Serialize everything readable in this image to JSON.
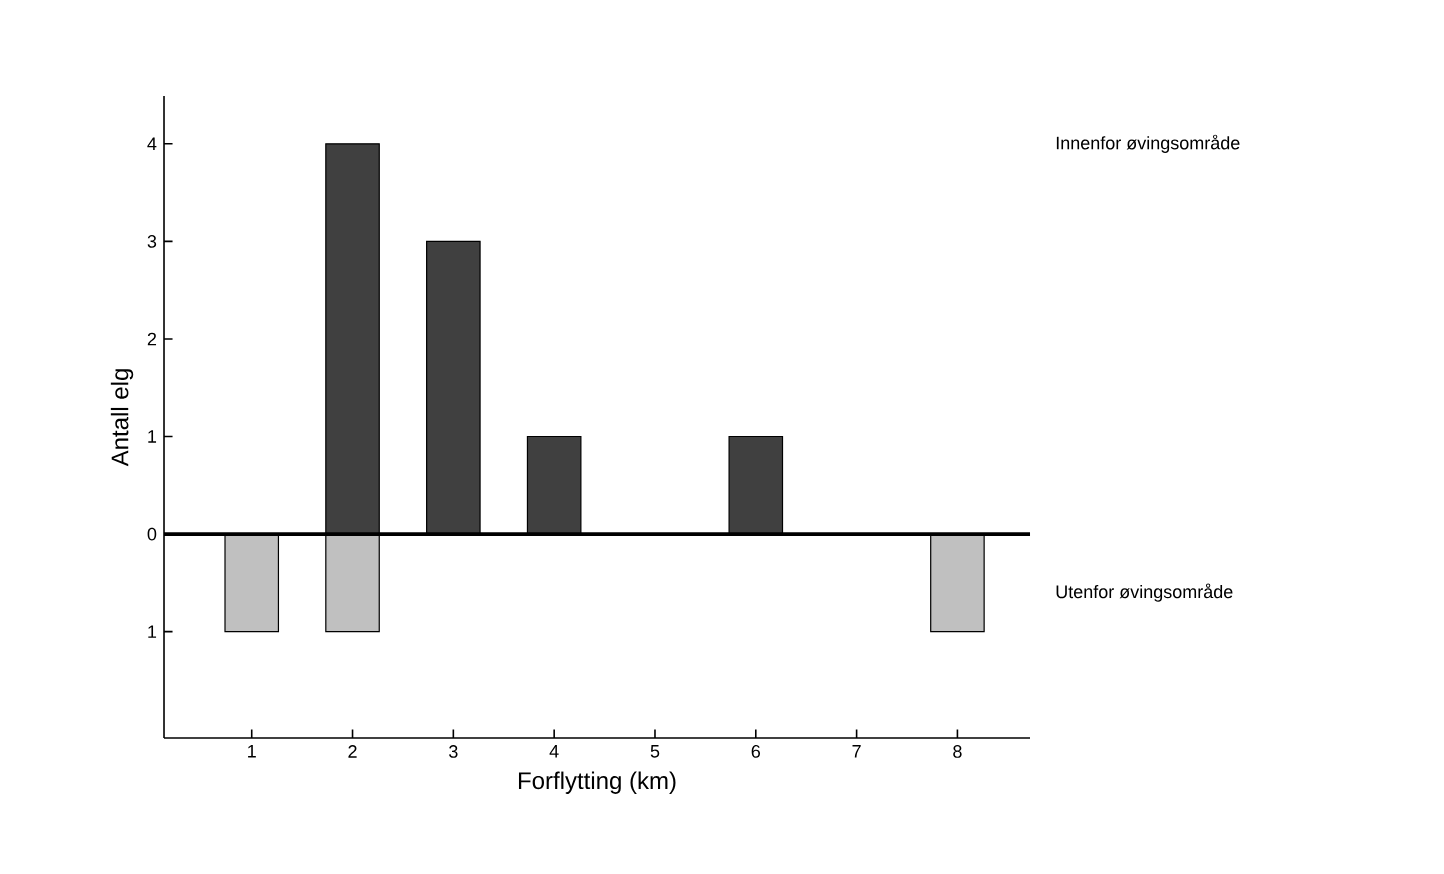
{
  "chart_data": {
    "type": "bar",
    "xlabel": "Forflytting (km)",
    "ylabel": "Antall elg",
    "categories": [
      "1",
      "2",
      "3",
      "4",
      "5",
      "6",
      "7",
      "8"
    ],
    "series": [
      {
        "name": "Innenfor øvingsområde",
        "color": "#404040",
        "values": [
          null,
          4,
          3,
          1,
          null,
          1,
          null,
          null
        ]
      },
      {
        "name": "Utenfor øvingsområde",
        "color": "#c0c0c0",
        "values": [
          -1,
          -1,
          null,
          null,
          null,
          null,
          null,
          -1
        ]
      }
    ],
    "ylim": [
      -2.09,
      4.49
    ],
    "yticks": [
      {
        "value": -1,
        "label": "1"
      },
      0,
      1,
      2,
      3,
      4
    ],
    "ref_lines": [
      {
        "axis": "y",
        "value": 0,
        "color": "#000000"
      }
    ]
  }
}
